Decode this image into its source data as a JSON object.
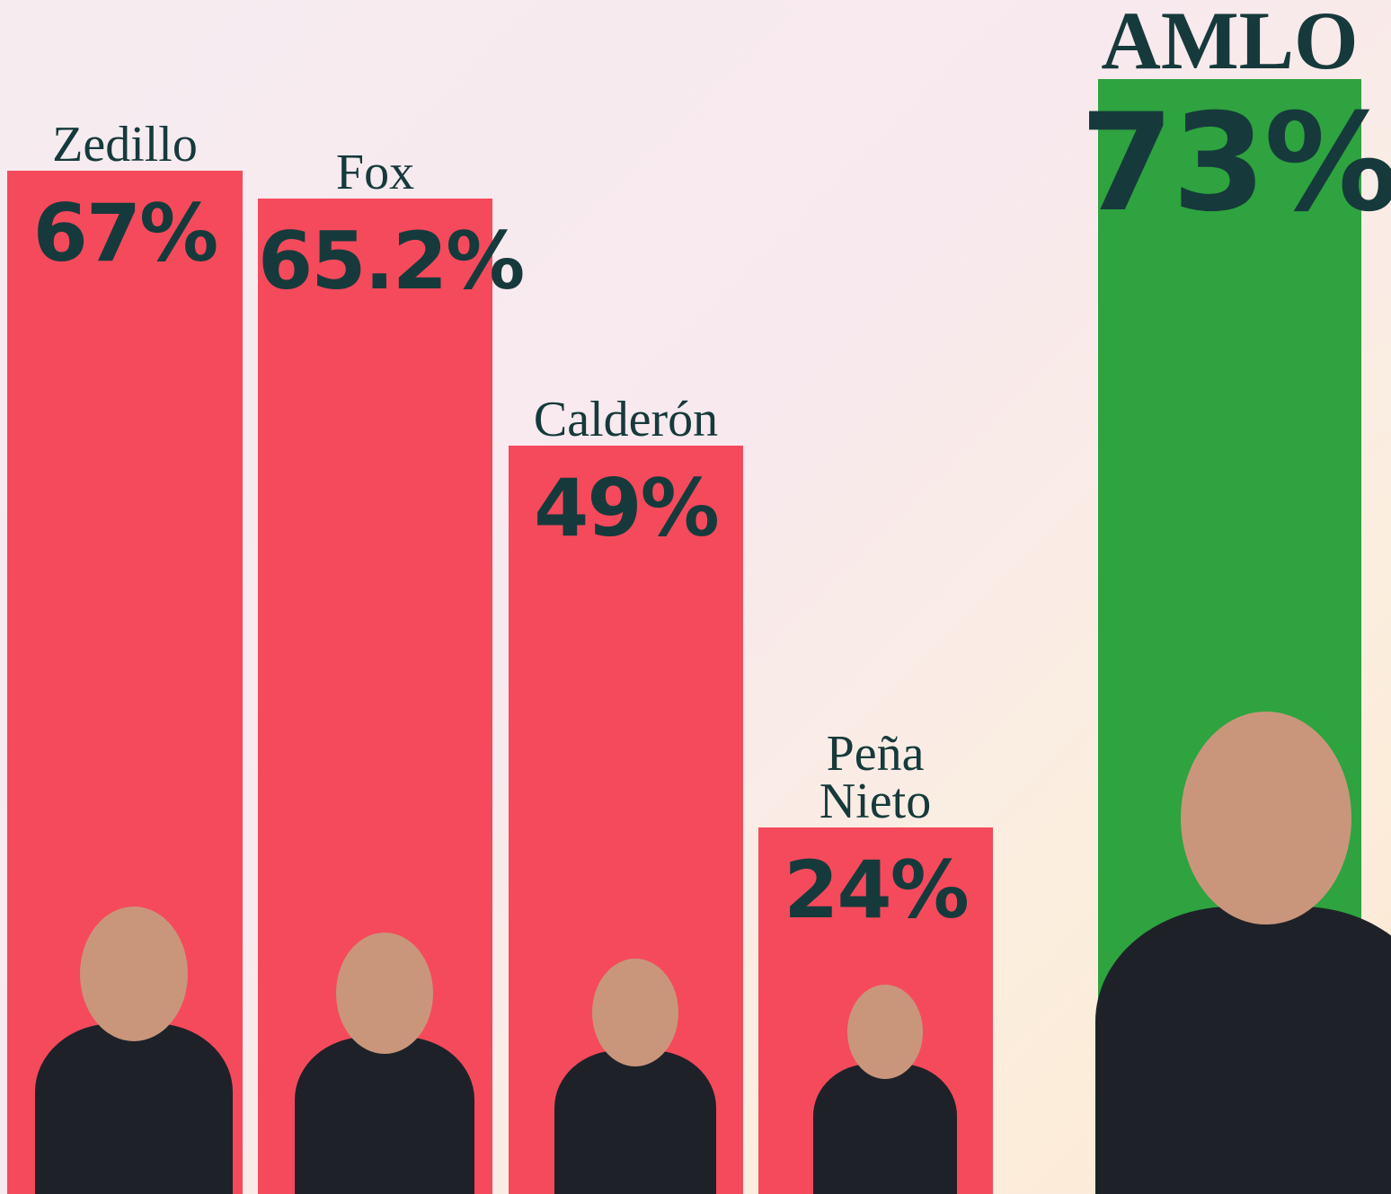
{
  "chart_data": {
    "type": "bar",
    "categories": [
      "Zedillo",
      "Fox",
      "Calderón",
      "Peña Nieto",
      "AMLO"
    ],
    "values": [
      67,
      65.2,
      49,
      24,
      73
    ],
    "value_labels": [
      "67%",
      "65.2%",
      "49%",
      "24%",
      "73%"
    ],
    "colors": [
      "#f54a5c",
      "#f54a5c",
      "#f54a5c",
      "#f54a5c",
      "#2ea33f"
    ]
  }
}
